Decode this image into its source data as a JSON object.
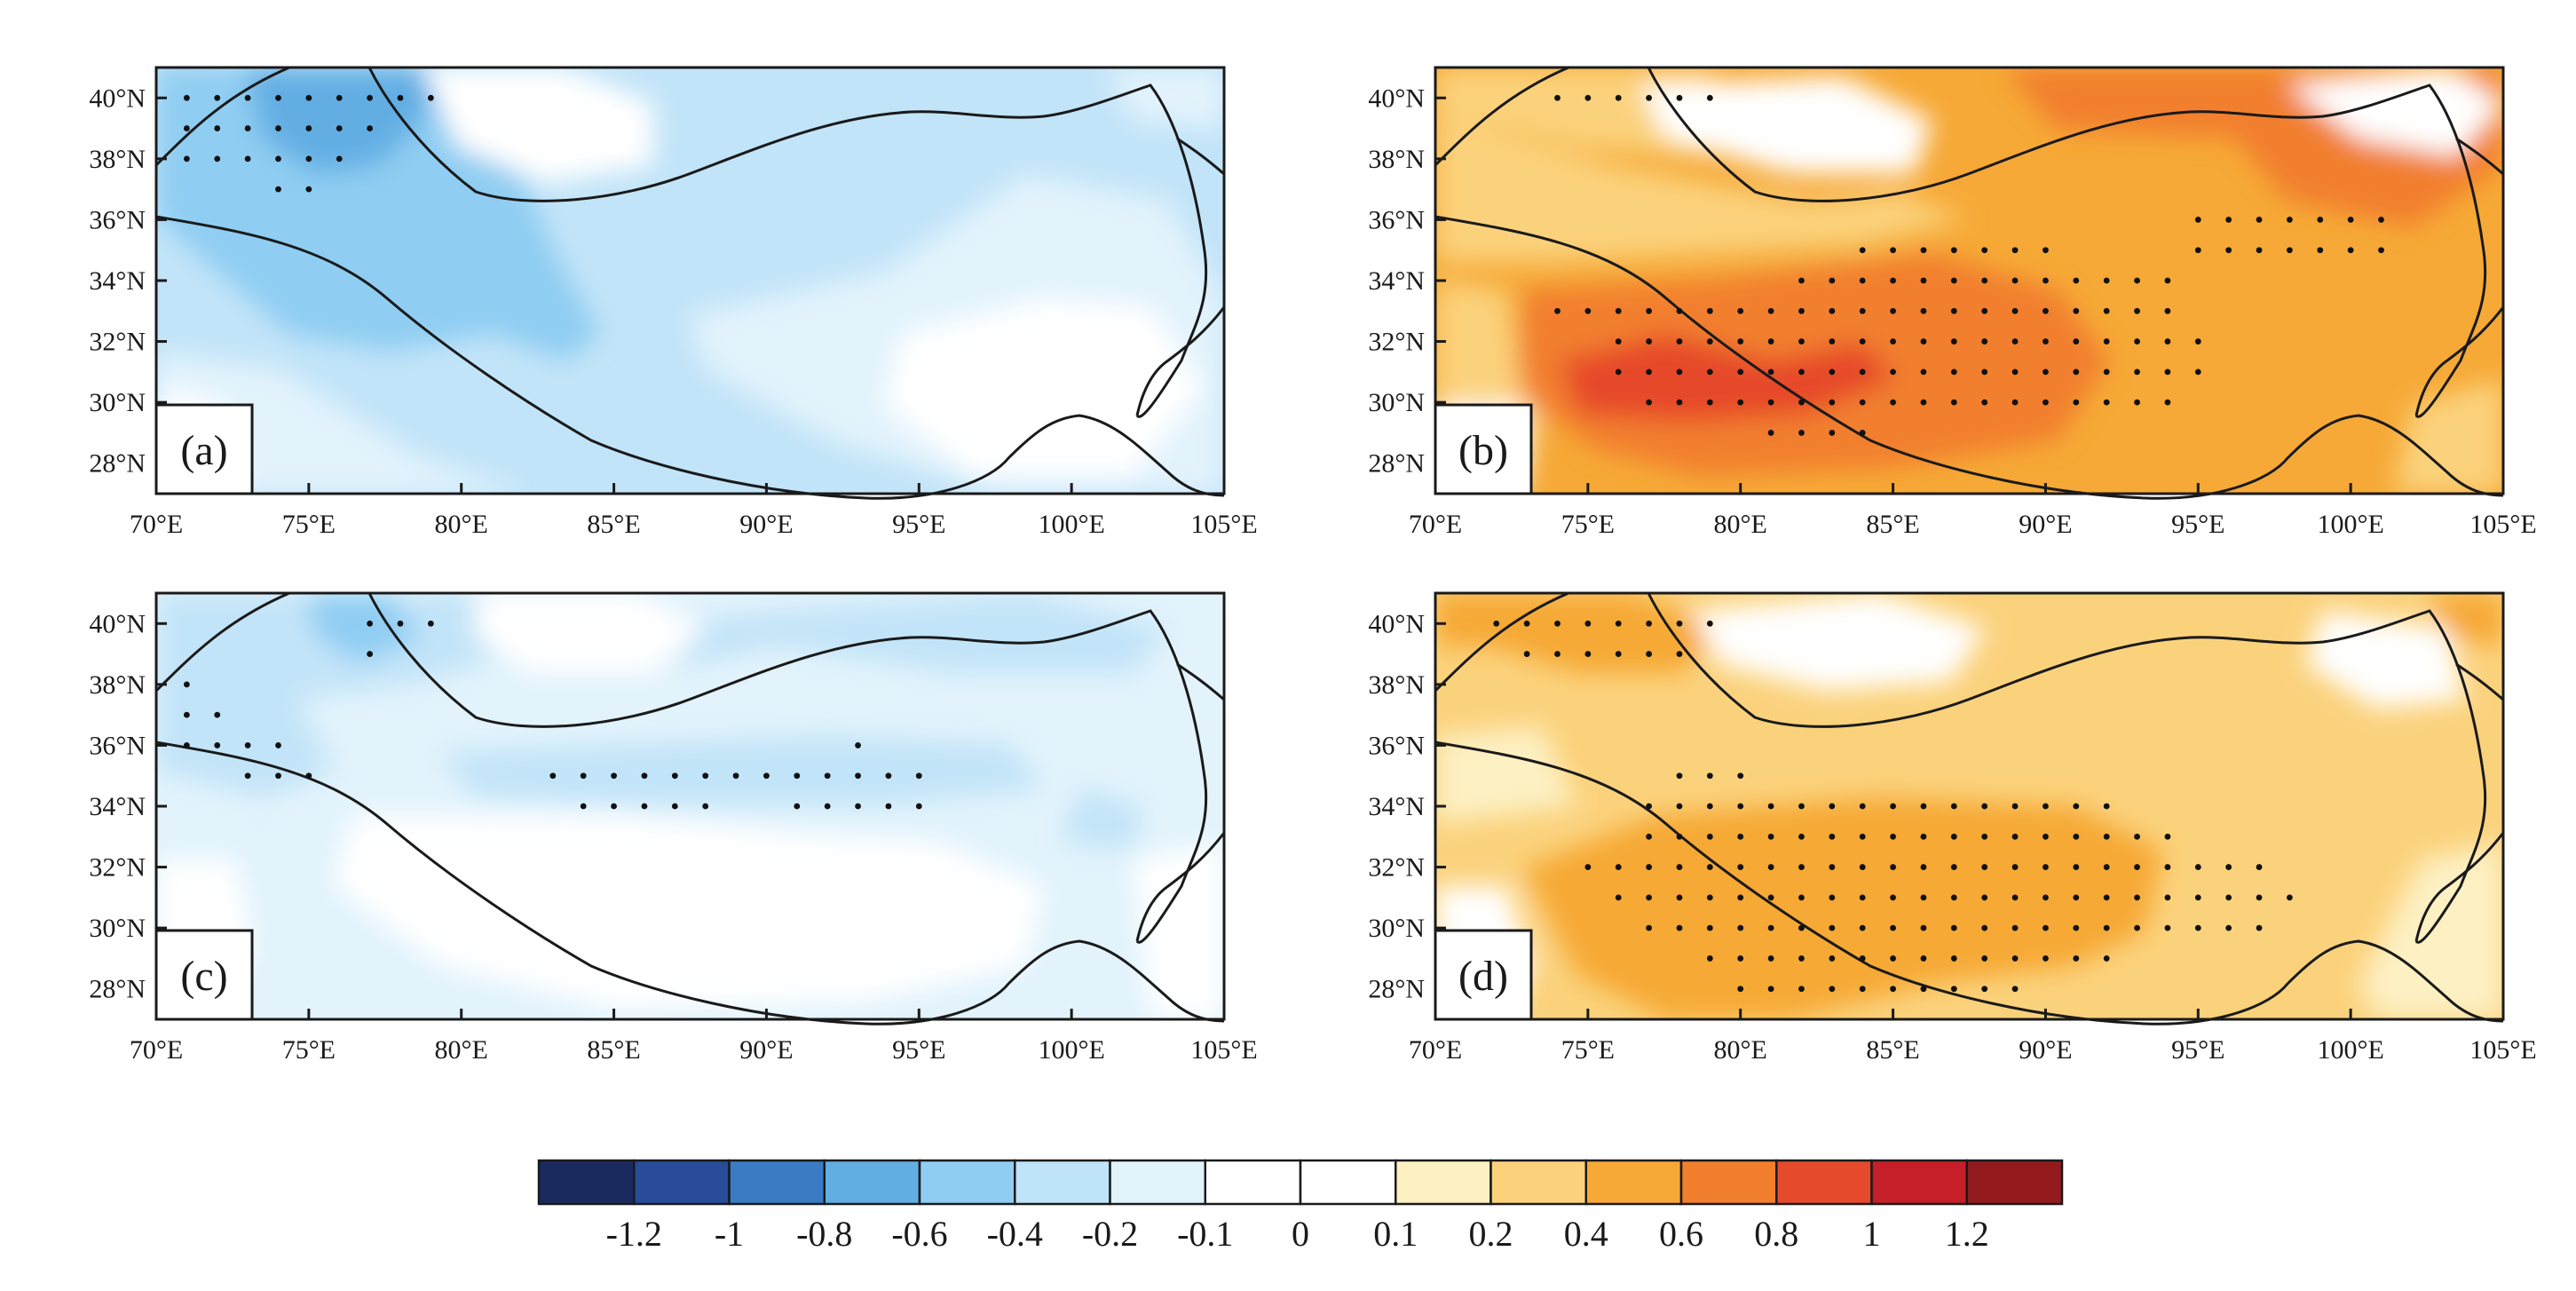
{
  "map_data": {
    "type": "contour-map-panels",
    "lon_range": [
      70,
      105
    ],
    "lat_range": [
      27,
      41
    ],
    "lon_ticks": [
      "70°E",
      "75°E",
      "80°E",
      "85°E",
      "90°E",
      "95°E",
      "100°E",
      "105°E"
    ],
    "lat_ticks": [
      "28°N",
      "30°N",
      "32°N",
      "34°N",
      "36°N",
      "38°N",
      "40°N"
    ],
    "significance_marker": "black dots",
    "panels": [
      {
        "label": "(a)",
        "sign": "negative",
        "stipple": {
          "rows": [
            {
              "lat": 40,
              "lons": [
                71,
                79
              ]
            },
            {
              "lat": 39,
              "lons": [
                71,
                77
              ]
            },
            {
              "lat": 38,
              "lons": [
                71,
                76
              ]
            },
            {
              "lat": 37,
              "lons": [
                74,
                75
              ]
            }
          ]
        }
      },
      {
        "label": "(b)",
        "sign": "positive",
        "stipple": {
          "rows": [
            {
              "lat": 40,
              "lons": [
                74,
                79
              ]
            },
            {
              "lat": 36,
              "lons": [
                95,
                101
              ]
            },
            {
              "lat": 35,
              "lons": [
                84,
                90
              ]
            },
            {
              "lat": 35,
              "lons": [
                95,
                101
              ]
            },
            {
              "lat": 34,
              "lons": [
                82,
                94
              ]
            },
            {
              "lat": 33,
              "lons": [
                74,
                94
              ]
            },
            {
              "lat": 32,
              "lons": [
                76,
                95
              ]
            },
            {
              "lat": 31,
              "lons": [
                76,
                95
              ]
            },
            {
              "lat": 30,
              "lons": [
                77,
                94
              ]
            },
            {
              "lat": 29,
              "lons": [
                81,
                84
              ]
            }
          ]
        }
      },
      {
        "label": "(c)",
        "sign": "negative",
        "stipple": {
          "rows": [
            {
              "lat": 40,
              "lons": [
                77,
                79
              ]
            },
            {
              "lat": 39,
              "lons": [
                77,
                77
              ]
            },
            {
              "lat": 38,
              "lons": [
                71,
                71
              ]
            },
            {
              "lat": 37,
              "lons": [
                71,
                72
              ]
            },
            {
              "lat": 36,
              "lons": [
                71,
                74
              ]
            },
            {
              "lat": 36,
              "lons": [
                93,
                93
              ]
            },
            {
              "lat": 35,
              "lons": [
                73,
                75
              ]
            },
            {
              "lat": 35,
              "lons": [
                83,
                95
              ]
            },
            {
              "lat": 34,
              "lons": [
                84,
                88
              ]
            },
            {
              "lat": 34,
              "lons": [
                91,
                95
              ]
            }
          ]
        }
      },
      {
        "label": "(d)",
        "sign": "positive",
        "stipple": {
          "rows": [
            {
              "lat": 40,
              "lons": [
                72,
                79
              ]
            },
            {
              "lat": 39,
              "lons": [
                73,
                78
              ]
            },
            {
              "lat": 35,
              "lons": [
                78,
                80
              ]
            },
            {
              "lat": 34,
              "lons": [
                77,
                92
              ]
            },
            {
              "lat": 33,
              "lons": [
                77,
                94
              ]
            },
            {
              "lat": 32,
              "lons": [
                75,
                97
              ]
            },
            {
              "lat": 31,
              "lons": [
                76,
                98
              ]
            },
            {
              "lat": 30,
              "lons": [
                77,
                97
              ]
            },
            {
              "lat": 29,
              "lons": [
                79,
                92
              ]
            },
            {
              "lat": 28,
              "lons": [
                80,
                89
              ]
            }
          ]
        }
      }
    ],
    "colorbar": {
      "levels": [
        "-1.2",
        "-1",
        "-0.8",
        "-0.6",
        "-0.4",
        "-0.2",
        "-0.1",
        "0",
        "0.1",
        "0.2",
        "0.4",
        "0.6",
        "0.8",
        "1",
        "1.2"
      ],
      "colors": [
        "#1b2a5e",
        "#284b9a",
        "#3a7cc4",
        "#62aee3",
        "#90cdf3",
        "#bfe3f8",
        "#e2f3fc",
        "#ffffff",
        "#ffffff",
        "#fdf0c3",
        "#fbd27c",
        "#f6a936",
        "#f27f2d",
        "#e64a2c",
        "#c61f29",
        "#931b1e"
      ]
    }
  }
}
